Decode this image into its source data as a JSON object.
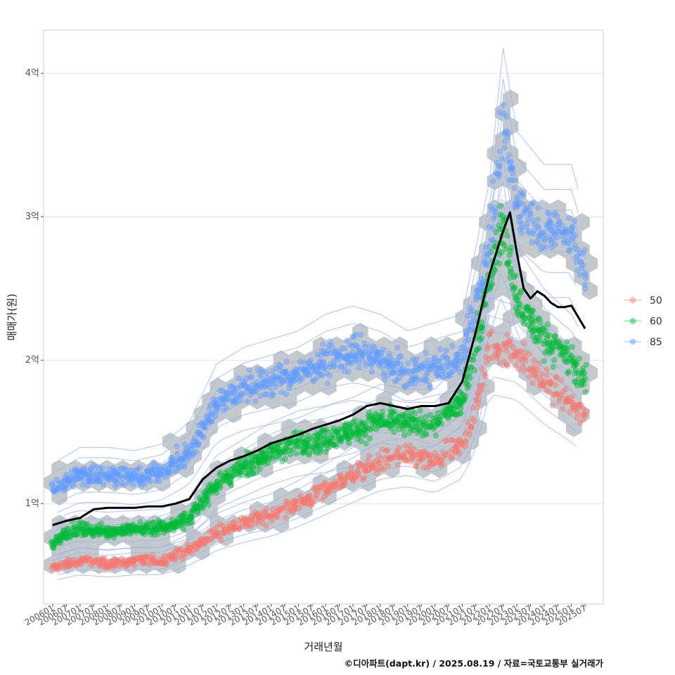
{
  "chart_data": {
    "type": "scatter",
    "xlabel": "거래년월",
    "ylabel": "매매가(원)",
    "caption": "©디아파트(dapt.kr) / 2025.08.19 / 자료=국토교통부 실거래가",
    "y_unit": "억",
    "ylim": [
      0.3,
      4.3
    ],
    "y_ticks": [
      {
        "value": 1,
        "label": "1억"
      },
      {
        "value": 2,
        "label": "2억"
      },
      {
        "value": 3,
        "label": "3억"
      },
      {
        "value": 4,
        "label": "4억"
      }
    ],
    "x_range": [
      "200509",
      "202603"
    ],
    "x_ticks": [
      "200601",
      "200607",
      "200701",
      "200707",
      "200801",
      "200807",
      "200901",
      "200907",
      "201001",
      "201007",
      "201101",
      "201107",
      "201201",
      "201207",
      "201301",
      "201307",
      "201401",
      "201407",
      "201501",
      "201507",
      "201601",
      "201607",
      "201701",
      "201707",
      "201801",
      "201807",
      "201901",
      "201907",
      "202001",
      "202007",
      "202101",
      "202107",
      "202201",
      "202207",
      "202301",
      "202307",
      "202401",
      "202407",
      "202501",
      "202507"
    ],
    "legend": {
      "position": "right",
      "entries": [
        {
          "label": "50",
          "color": "#F8766D"
        },
        {
          "label": "60",
          "color": "#00BA38"
        },
        {
          "label": "85",
          "color": "#619CFF"
        }
      ]
    },
    "layers": [
      "hexbin-density",
      "density-contours",
      "points-by-size",
      "median-line"
    ],
    "series": [
      {
        "name": "50",
        "color": "#F8766D",
        "anchors": [
          [
            "200601",
            0.55
          ],
          [
            "200701",
            0.6
          ],
          [
            "200801",
            0.58
          ],
          [
            "200901",
            0.6
          ],
          [
            "201001",
            0.6
          ],
          [
            "201101",
            0.68
          ],
          [
            "201201",
            0.8
          ],
          [
            "201301",
            0.87
          ],
          [
            "201401",
            0.92
          ],
          [
            "201501",
            1.0
          ],
          [
            "201601",
            1.1
          ],
          [
            "201701",
            1.2
          ],
          [
            "201801",
            1.3
          ],
          [
            "201901",
            1.33
          ],
          [
            "202001",
            1.28
          ],
          [
            "202101",
            1.4
          ],
          [
            "202107",
            1.65
          ],
          [
            "202201",
            2.1
          ],
          [
            "202301",
            2.05
          ],
          [
            "202401",
            1.85
          ],
          [
            "202501",
            1.7
          ],
          [
            "202507",
            1.6
          ]
        ]
      },
      {
        "name": "60",
        "color": "#00BA38",
        "anchors": [
          [
            "200601",
            0.72
          ],
          [
            "200607",
            0.8
          ],
          [
            "200701",
            0.82
          ],
          [
            "200801",
            0.81
          ],
          [
            "200901",
            0.82
          ],
          [
            "201001",
            0.83
          ],
          [
            "201101",
            0.9
          ],
          [
            "201201",
            1.15
          ],
          [
            "201301",
            1.25
          ],
          [
            "201401",
            1.35
          ],
          [
            "201501",
            1.42
          ],
          [
            "201601",
            1.45
          ],
          [
            "201701",
            1.5
          ],
          [
            "201801",
            1.58
          ],
          [
            "201901",
            1.55
          ],
          [
            "202001",
            1.55
          ],
          [
            "202101",
            1.72
          ],
          [
            "202107",
            2.1
          ],
          [
            "202201",
            2.6
          ],
          [
            "202207",
            2.95
          ],
          [
            "202301",
            2.4
          ],
          [
            "202401",
            2.15
          ],
          [
            "202501",
            2.0
          ],
          [
            "202507",
            1.85
          ]
        ]
      },
      {
        "name": "85",
        "color": "#619CFF",
        "anchors": [
          [
            "200601",
            1.1
          ],
          [
            "200701",
            1.2
          ],
          [
            "200801",
            1.2
          ],
          [
            "200901",
            1.18
          ],
          [
            "201001",
            1.22
          ],
          [
            "201101",
            1.35
          ],
          [
            "201201",
            1.7
          ],
          [
            "201301",
            1.8
          ],
          [
            "201401",
            1.85
          ],
          [
            "201501",
            1.9
          ],
          [
            "201601",
            2.0
          ],
          [
            "201701",
            2.05
          ],
          [
            "201801",
            2.0
          ],
          [
            "201901",
            1.9
          ],
          [
            "202001",
            1.95
          ],
          [
            "202101",
            2.0
          ],
          [
            "202107",
            2.4
          ],
          [
            "202201",
            2.8
          ],
          [
            "202207",
            3.6
          ],
          [
            "202301",
            3.1
          ],
          [
            "202401",
            2.9
          ],
          [
            "202501",
            2.9
          ],
          [
            "202507",
            2.6
          ]
        ]
      }
    ],
    "median_line": {
      "name": "median",
      "color": "#000000",
      "points": [
        [
          "200601",
          0.85
        ],
        [
          "200607",
          0.88
        ],
        [
          "200701",
          0.9
        ],
        [
          "200707",
          0.96
        ],
        [
          "200801",
          0.97
        ],
        [
          "200807",
          0.97
        ],
        [
          "200901",
          0.97
        ],
        [
          "200907",
          0.98
        ],
        [
          "201001",
          0.98
        ],
        [
          "201007",
          1.0
        ],
        [
          "201101",
          1.03
        ],
        [
          "201107",
          1.17
        ],
        [
          "201201",
          1.25
        ],
        [
          "201207",
          1.3
        ],
        [
          "201301",
          1.33
        ],
        [
          "201307",
          1.37
        ],
        [
          "201401",
          1.42
        ],
        [
          "201407",
          1.45
        ],
        [
          "201501",
          1.48
        ],
        [
          "201507",
          1.52
        ],
        [
          "201601",
          1.55
        ],
        [
          "201607",
          1.58
        ],
        [
          "201701",
          1.62
        ],
        [
          "201707",
          1.68
        ],
        [
          "201801",
          1.7
        ],
        [
          "201807",
          1.68
        ],
        [
          "201901",
          1.66
        ],
        [
          "201907",
          1.68
        ],
        [
          "202001",
          1.68
        ],
        [
          "202007",
          1.7
        ],
        [
          "202101",
          1.85
        ],
        [
          "202107",
          2.2
        ],
        [
          "202201",
          2.6
        ],
        [
          "202207",
          2.9
        ],
        [
          "202210",
          3.03
        ],
        [
          "202301",
          2.75
        ],
        [
          "202304",
          2.5
        ],
        [
          "202307",
          2.43
        ],
        [
          "202310",
          2.48
        ],
        [
          "202401",
          2.45
        ],
        [
          "202404",
          2.4
        ],
        [
          "202407",
          2.37
        ],
        [
          "202410",
          2.37
        ],
        [
          "202501",
          2.38
        ],
        [
          "202504",
          2.3
        ],
        [
          "202507",
          2.22
        ]
      ]
    }
  }
}
